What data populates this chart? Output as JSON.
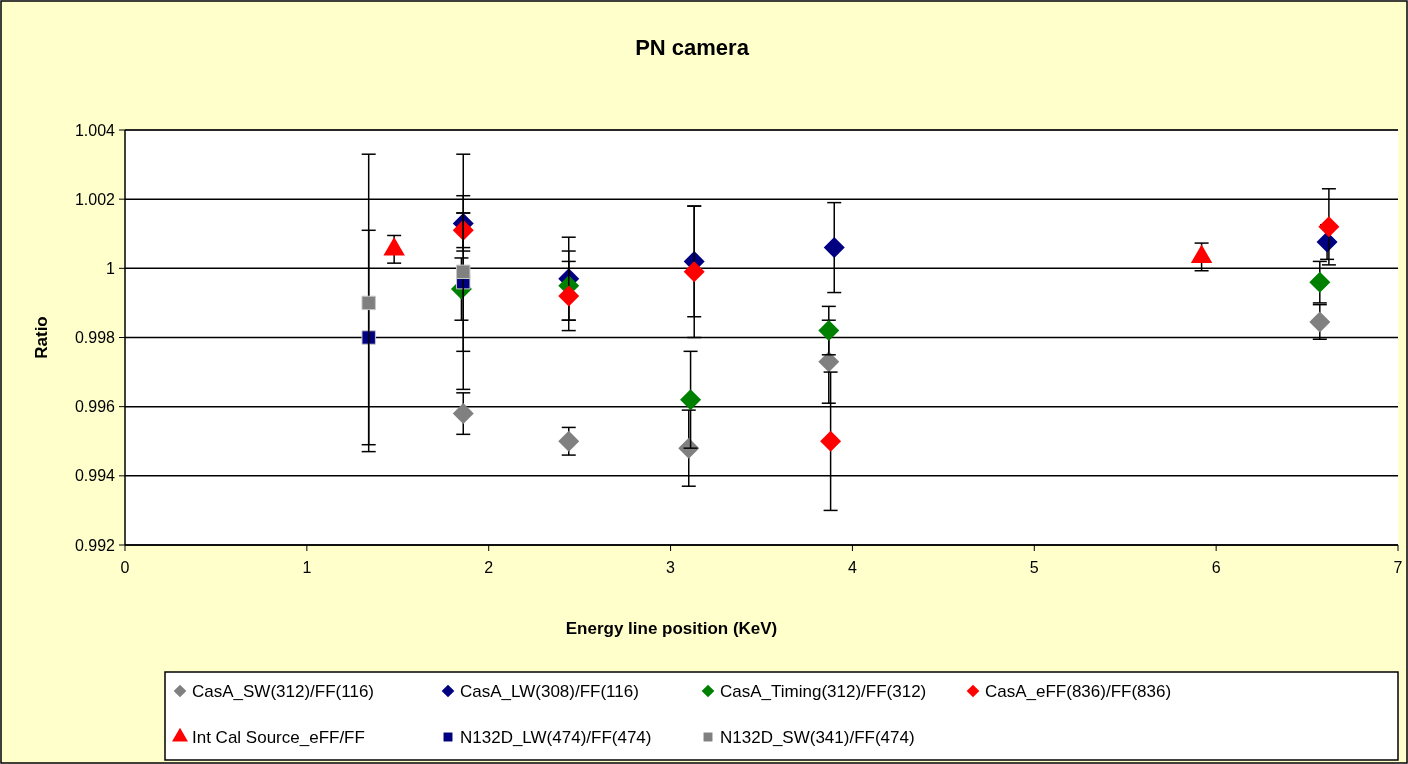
{
  "chart_data": {
    "type": "scatter",
    "title": "PN camera",
    "xlabel": "Energy line position (KeV)",
    "ylabel": "Ratio",
    "xlim": [
      0,
      7
    ],
    "xticks": [
      0,
      1,
      2,
      3,
      4,
      5,
      6,
      7
    ],
    "ylim": [
      0.992,
      1.004
    ],
    "yticks": [
      0.992,
      0.994,
      0.996,
      0.998,
      1,
      1.002,
      1.004
    ],
    "grid": "y",
    "legend": "bottom",
    "series": [
      {
        "name": "CasA_SW(312)/FF(116)",
        "color": "#808080",
        "marker": "diamond",
        "x": [
          1.86,
          2.44,
          3.1,
          3.87,
          6.57
        ],
        "values": [
          0.9958,
          0.995,
          0.9948,
          0.9973,
          0.99845
        ],
        "errors": [
          0.0006,
          0.0004,
          0.0011,
          0.0012,
          0.0005
        ]
      },
      {
        "name": "CasA_LW(308)/FF(116)",
        "color": "#000080",
        "marker": "diamond",
        "x": [
          1.86,
          2.44,
          3.13,
          3.9,
          6.61
        ],
        "values": [
          1.0013,
          0.9997,
          1.0002,
          1.0006,
          1.00076
        ],
        "errors": [
          0.0008,
          0.0012,
          0.0016,
          0.0013,
          0.0005
        ]
      },
      {
        "name": "CasA_Timing(312)/FF(312)",
        "color": "#008000",
        "marker": "diamond",
        "x": [
          1.85,
          2.44,
          3.11,
          3.87,
          6.57
        ],
        "values": [
          0.9994,
          0.9995,
          0.9962,
          0.9982,
          0.9996
        ],
        "errors": [
          0.0009,
          0.001,
          0.0014,
          0.0007,
          0.0006
        ]
      },
      {
        "name": "CasA_eFF(836)/FF(836)",
        "color": "#ff0000",
        "marker": "diamond",
        "x": [
          1.86,
          2.44,
          3.13,
          3.88,
          6.62
        ],
        "values": [
          1.0011,
          0.9992,
          0.9999,
          0.995,
          1.0012
        ],
        "errors": [
          0.0005,
          0.001,
          0.0019,
          0.002,
          0.0011
        ]
      },
      {
        "name": "Int Cal Source_eFF/FF",
        "color": "#ff0000",
        "marker": "triangle",
        "x": [
          1.48,
          5.92
        ],
        "values": [
          1.00055,
          1.00033
        ],
        "errors": [
          0.0004,
          0.0004
        ]
      },
      {
        "name": "N132D_LW(474)/FF(474)",
        "color": "#000080",
        "marker": "square",
        "x": [
          1.34,
          1.86
        ],
        "values": [
          0.998,
          0.9996
        ],
        "errors": [
          0.0031,
          0.002
        ]
      },
      {
        "name": "N132D_SW(341)/FF(474)",
        "color": "#808080",
        "marker": "square",
        "x": [
          1.34,
          1.86
        ],
        "values": [
          0.999,
          0.9999
        ],
        "errors": [
          0.0043,
          0.0034
        ]
      }
    ]
  }
}
